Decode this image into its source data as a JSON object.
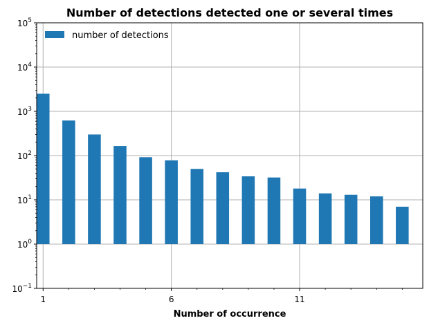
{
  "chart_data": {
    "type": "bar",
    "title": "Number of detections detected one or several times",
    "xlabel": "Number of occurrence",
    "ylabel": "",
    "yscale": "log",
    "ylim": [
      0.1,
      100000
    ],
    "xlim": [
      0.75,
      15.8
    ],
    "bar_bottom": 1,
    "grid": true,
    "legend_position": "top-left",
    "color": "#1f77b4",
    "series": [
      {
        "name": "number of detections",
        "x": [
          1,
          2,
          3,
          4,
          5,
          6,
          7,
          8,
          9,
          10,
          11,
          12,
          13,
          14,
          15
        ],
        "values": [
          2500,
          620,
          300,
          165,
          92,
          78,
          50,
          42,
          34,
          32,
          18,
          14,
          13,
          12,
          7
        ]
      }
    ],
    "x_ticks": [
      {
        "value": 1,
        "label": "1"
      },
      {
        "value": 6,
        "label": "6"
      },
      {
        "value": 11,
        "label": "11"
      }
    ],
    "y_ticks": [
      {
        "value": 0.1,
        "base": "10",
        "exp": "−1"
      },
      {
        "value": 1,
        "base": "10",
        "exp": "0"
      },
      {
        "value": 10,
        "base": "10",
        "exp": "1"
      },
      {
        "value": 100,
        "base": "10",
        "exp": "2"
      },
      {
        "value": 1000,
        "base": "10",
        "exp": "3"
      },
      {
        "value": 10000,
        "base": "10",
        "exp": "4"
      },
      {
        "value": 100000,
        "base": "10",
        "exp": "5"
      }
    ]
  }
}
